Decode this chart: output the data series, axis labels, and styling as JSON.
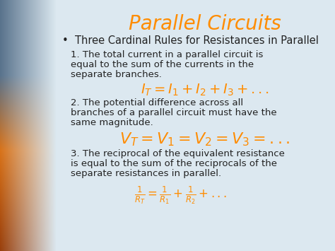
{
  "title": "Parallel Circuits",
  "title_color": "#FF8C00",
  "title_fontsize": 20,
  "bullet": "•  Three Cardinal Rules for Resistances in Parallel",
  "bullet_fontsize": 10.5,
  "body_color": "#222222",
  "body_fontsize": 9.5,
  "formula_color": "#FF8C00",
  "formula_fontsize": 13,
  "bg_color": "#dce8f0",
  "rule1_line1": "1. The total current in a parallel circuit is",
  "rule1_line2": "equal to the sum of the currents in the",
  "rule1_line3": "separate branches.",
  "rule1_formula": "$I_T = I_1 + I_2 + I_3 + ...$",
  "rule2_line1": "2. The potential difference across all",
  "rule2_line2": "branches of a parallel circuit must have the",
  "rule2_line3": "same magnitude.",
  "rule2_formula": "$V_T = V_1 = V_2 = V_3 = ...$",
  "rule3_line1": "3. The reciprocal of the equivalent resistance",
  "rule3_line2": "is equal to the sum of the reciprocals of the",
  "rule3_line3": "separate resistances in parallel.",
  "rule3_formula": "$\\frac{1}{R_T} = \\frac{1}{R_1} + \\frac{1}{R_2} + ...$"
}
